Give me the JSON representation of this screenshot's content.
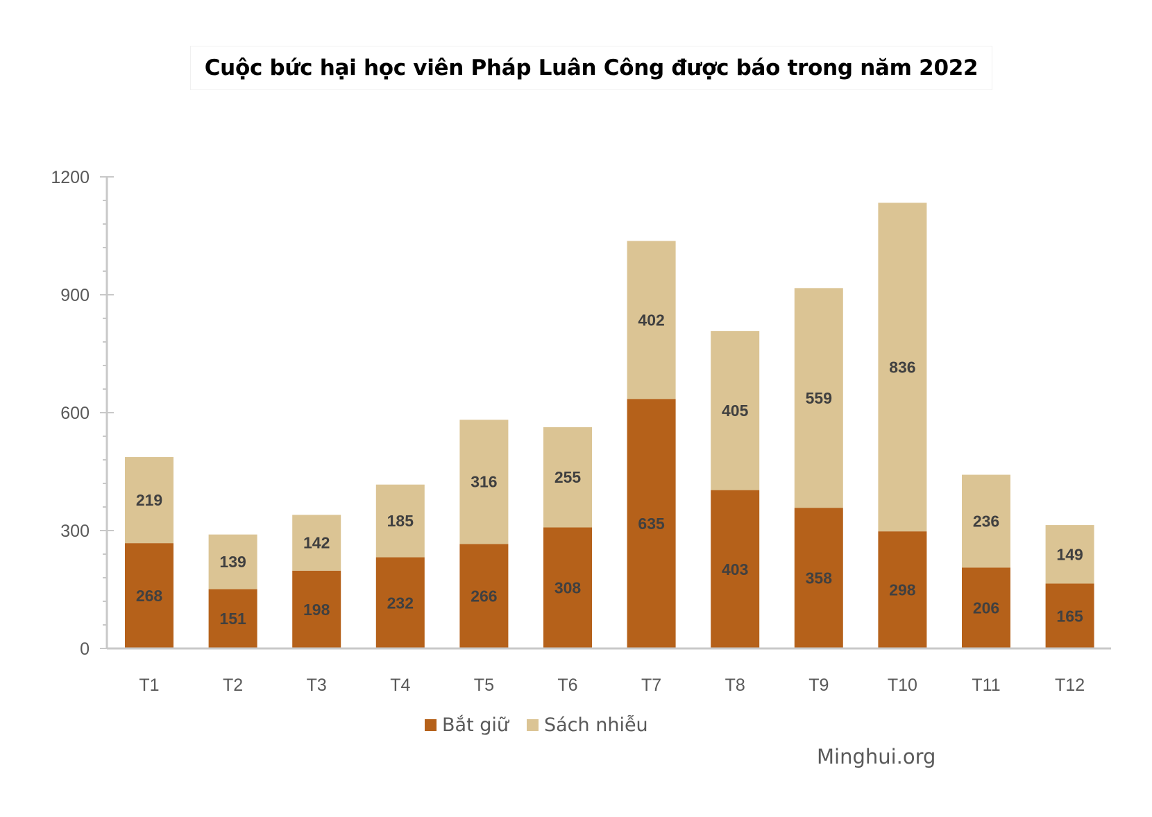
{
  "chart_data": {
    "type": "bar",
    "stacked": true,
    "title": "Cuộc bức hại học viên Pháp Luân Công được báo trong năm 2022",
    "xlabel": "",
    "ylabel": "",
    "ylim": [
      0,
      1200
    ],
    "yticks": [
      0,
      300,
      600,
      900,
      1200
    ],
    "categories": [
      "T1",
      "T2",
      "T3",
      "T4",
      "T5",
      "T6",
      "T7",
      "T8",
      "T9",
      "T10",
      "T11",
      "T12"
    ],
    "series": [
      {
        "name": "Bắt giữ",
        "color": "#B5611A",
        "values": [
          268,
          151,
          198,
          232,
          266,
          308,
          635,
          403,
          358,
          298,
          206,
          165
        ]
      },
      {
        "name": "Sách nhiễu",
        "color": "#DBC494",
        "values": [
          219,
          139,
          142,
          185,
          316,
          255,
          402,
          405,
          559,
          836,
          236,
          149
        ]
      }
    ],
    "legend_position": "bottom",
    "grid": false,
    "source": "Minghui.org"
  }
}
